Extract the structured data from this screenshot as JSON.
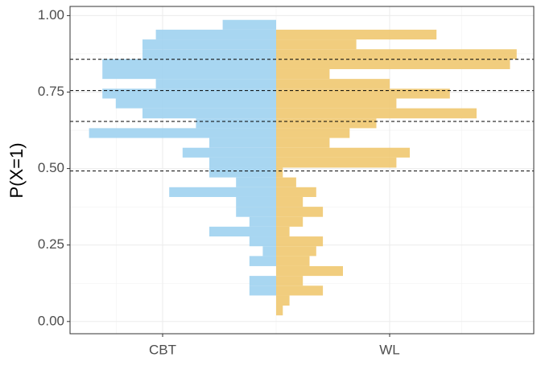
{
  "chart_data": {
    "type": "mirrored-histogram",
    "y_label": "P(X=1)",
    "categories": [
      "CBT",
      "WL"
    ],
    "bins": [
      0.02,
      0.052,
      0.085,
      0.117,
      0.149,
      0.181,
      0.214,
      0.246,
      0.278,
      0.31,
      0.342,
      0.375,
      0.407,
      0.439,
      0.471,
      0.503,
      0.536,
      0.568,
      0.6,
      0.632,
      0.664,
      0.697,
      0.729,
      0.761,
      0.793,
      0.825,
      0.858,
      0.89,
      0.922,
      0.954,
      0.986
    ],
    "series": [
      {
        "name": "CBT",
        "color": "#9fd1f0",
        "side": "left",
        "values": [
          0,
          0,
          4,
          4,
          0,
          4,
          2,
          4,
          10,
          4,
          6,
          6,
          16,
          6,
          10,
          10,
          14,
          10,
          28,
          12,
          20,
          24,
          26,
          18,
          26,
          26,
          20,
          20,
          18,
          8
        ]
      },
      {
        "name": "WL",
        "color": "#f0c870",
        "side": "right",
        "values": [
          1,
          2,
          7,
          4,
          10,
          5,
          6,
          7,
          2,
          4,
          7,
          4,
          6,
          3,
          1,
          18,
          20,
          8,
          11,
          15,
          30,
          18,
          26,
          17,
          8,
          35,
          36,
          12,
          24,
          0
        ]
      }
    ],
    "hlines": [
      0.857,
      0.755,
      0.654,
      0.492
    ],
    "ylim": [
      -0.04,
      1.03
    ],
    "yticks": [
      {
        "value": 0,
        "label": "0.00"
      },
      {
        "value": 0.25,
        "label": "0.25"
      },
      {
        "value": 0.5,
        "label": "0.50"
      },
      {
        "value": 0.75,
        "label": "0.75"
      },
      {
        "value": 1,
        "label": "1.00"
      }
    ],
    "grid": true
  }
}
